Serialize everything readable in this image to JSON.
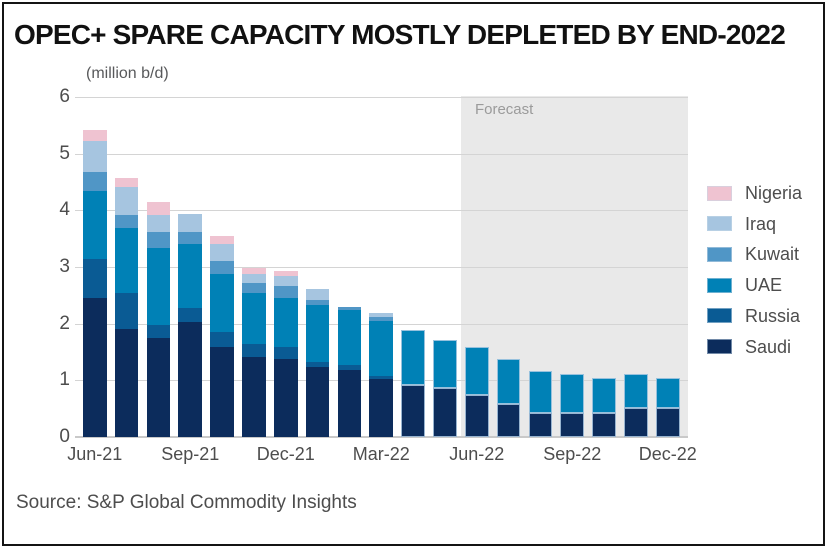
{
  "page": {
    "title": "OPEC+ SPARE CAPACITY MOSTLY DEPLETED BY END-2022",
    "source": "Source: S&P Global Commodity Insights"
  },
  "chart_data": {
    "type": "bar",
    "stacked": true,
    "title": "OPEC+ SPARE CAPACITY MOSTLY DEPLETED BY END-2022",
    "unit_label": "(million b/d)",
    "source": "Source: S&P Global Commodity Insights",
    "ylim": [
      0,
      6
    ],
    "yticks": [
      0,
      1,
      2,
      3,
      4,
      5,
      6
    ],
    "grid": "horizontal",
    "x_axis_tick_labels": [
      "Jun-21",
      "Sep-21",
      "Dec-21",
      "Mar-22",
      "Jun-22",
      "Sep-22",
      "Dec-22"
    ],
    "categories": [
      "Jun-21",
      "Jul-21",
      "Aug-21",
      "Sep-21",
      "Oct-21",
      "Nov-21",
      "Dec-21",
      "Jan-22",
      "Feb-22",
      "Mar-22",
      "Apr-22",
      "May-22",
      "Jun-22",
      "Jul-22",
      "Aug-22",
      "Sep-22",
      "Oct-22",
      "Nov-22",
      "Dec-22"
    ],
    "forecast_label": "Forecast",
    "forecast_start_category": "Jun-22",
    "forecast_fill_color": "#e9e9e9",
    "series": [
      {
        "name": "Saudi",
        "color": "#0c2c5c",
        "values": [
          2.45,
          1.91,
          1.74,
          2.03,
          1.59,
          1.41,
          1.38,
          1.23,
          1.18,
          1.02,
          0.91,
          0.87,
          0.74,
          0.59,
          0.43,
          0.42,
          0.42,
          0.52,
          0.52
        ]
      },
      {
        "name": "Russia",
        "color": "#0a5b94",
        "values": [
          0.7,
          0.63,
          0.23,
          0.24,
          0.26,
          0.24,
          0.21,
          0.1,
          0.09,
          0.06,
          0,
          0,
          0,
          0,
          0,
          0,
          0,
          0,
          0
        ]
      },
      {
        "name": "UAE",
        "color": "#0081b6",
        "values": [
          1.2,
          1.15,
          1.37,
          1.13,
          1.02,
          0.89,
          0.86,
          1.0,
          0.97,
          0.96,
          0.97,
          0.85,
          0.84,
          0.78,
          0.73,
          0.69,
          0.62,
          0.59,
          0.53
        ]
      },
      {
        "name": "Kuwait",
        "color": "#5096c6",
        "values": [
          0.33,
          0.22,
          0.28,
          0.21,
          0.23,
          0.18,
          0.21,
          0.09,
          0.06,
          0.07,
          0,
          0,
          0,
          0,
          0,
          0,
          0,
          0,
          0
        ]
      },
      {
        "name": "Iraq",
        "color": "#a6c5e0",
        "values": [
          0.54,
          0.5,
          0.3,
          0.33,
          0.3,
          0.15,
          0.18,
          0.2,
          0,
          0.07,
          0,
          0,
          0,
          0,
          0,
          0,
          0,
          0,
          0
        ]
      },
      {
        "name": "Nigeria",
        "color": "#efc3d1",
        "values": [
          0.19,
          0.16,
          0.22,
          0,
          0.15,
          0.12,
          0.09,
          0,
          0,
          0,
          0,
          0,
          0,
          0,
          0,
          0,
          0,
          0,
          0
        ]
      }
    ],
    "legend": {
      "position": "right",
      "order_top_to_bottom": [
        "Nigeria",
        "Iraq",
        "Kuwait",
        "UAE",
        "Russia",
        "Saudi"
      ]
    }
  }
}
